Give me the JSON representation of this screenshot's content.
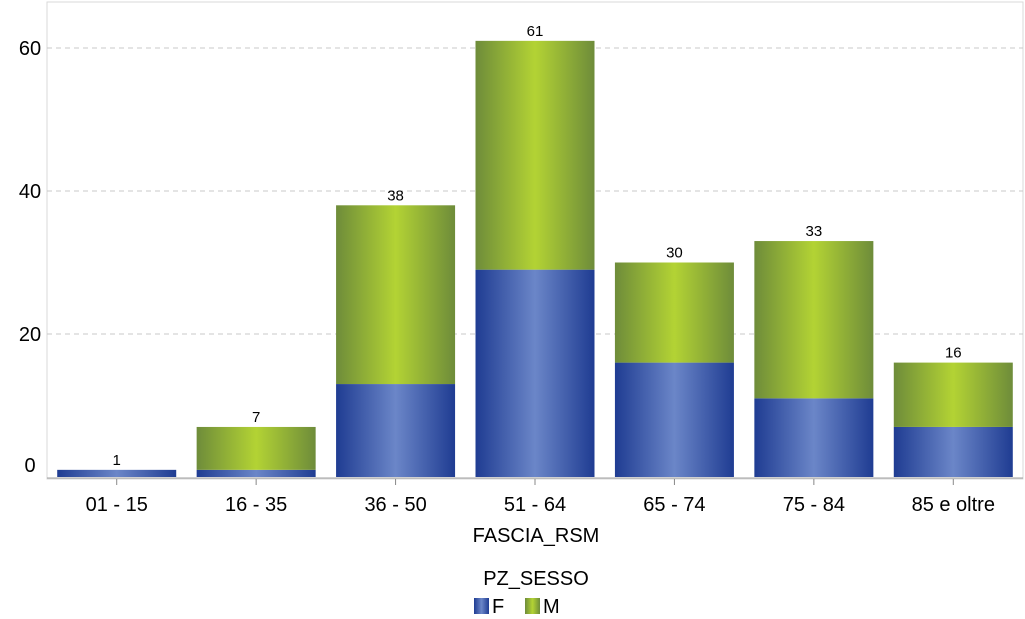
{
  "chart_data": {
    "type": "bar",
    "stacked": true,
    "categories": [
      "01 - 15",
      "16 - 35",
      "36 - 50",
      "51 - 64",
      "65 - 74",
      "75 - 84",
      "85 e oltre"
    ],
    "series": [
      {
        "name": "F",
        "values": [
          1,
          1,
          13,
          29,
          16,
          11,
          7
        ],
        "color": "#2f4fa8"
      },
      {
        "name": "M",
        "values": [
          0,
          6,
          25,
          32,
          14,
          22,
          9
        ],
        "color": "#8ab833"
      }
    ],
    "totals": [
      1,
      7,
      38,
      61,
      30,
      33,
      16
    ],
    "y_ticks": [
      0,
      20,
      40,
      60
    ],
    "ylim": [
      0,
      65
    ],
    "xlabel": "FASCIA_RSM",
    "ylabel": "",
    "legend_title": "PZ_SESSO",
    "legend_position": "bottom-center",
    "grid": true
  }
}
